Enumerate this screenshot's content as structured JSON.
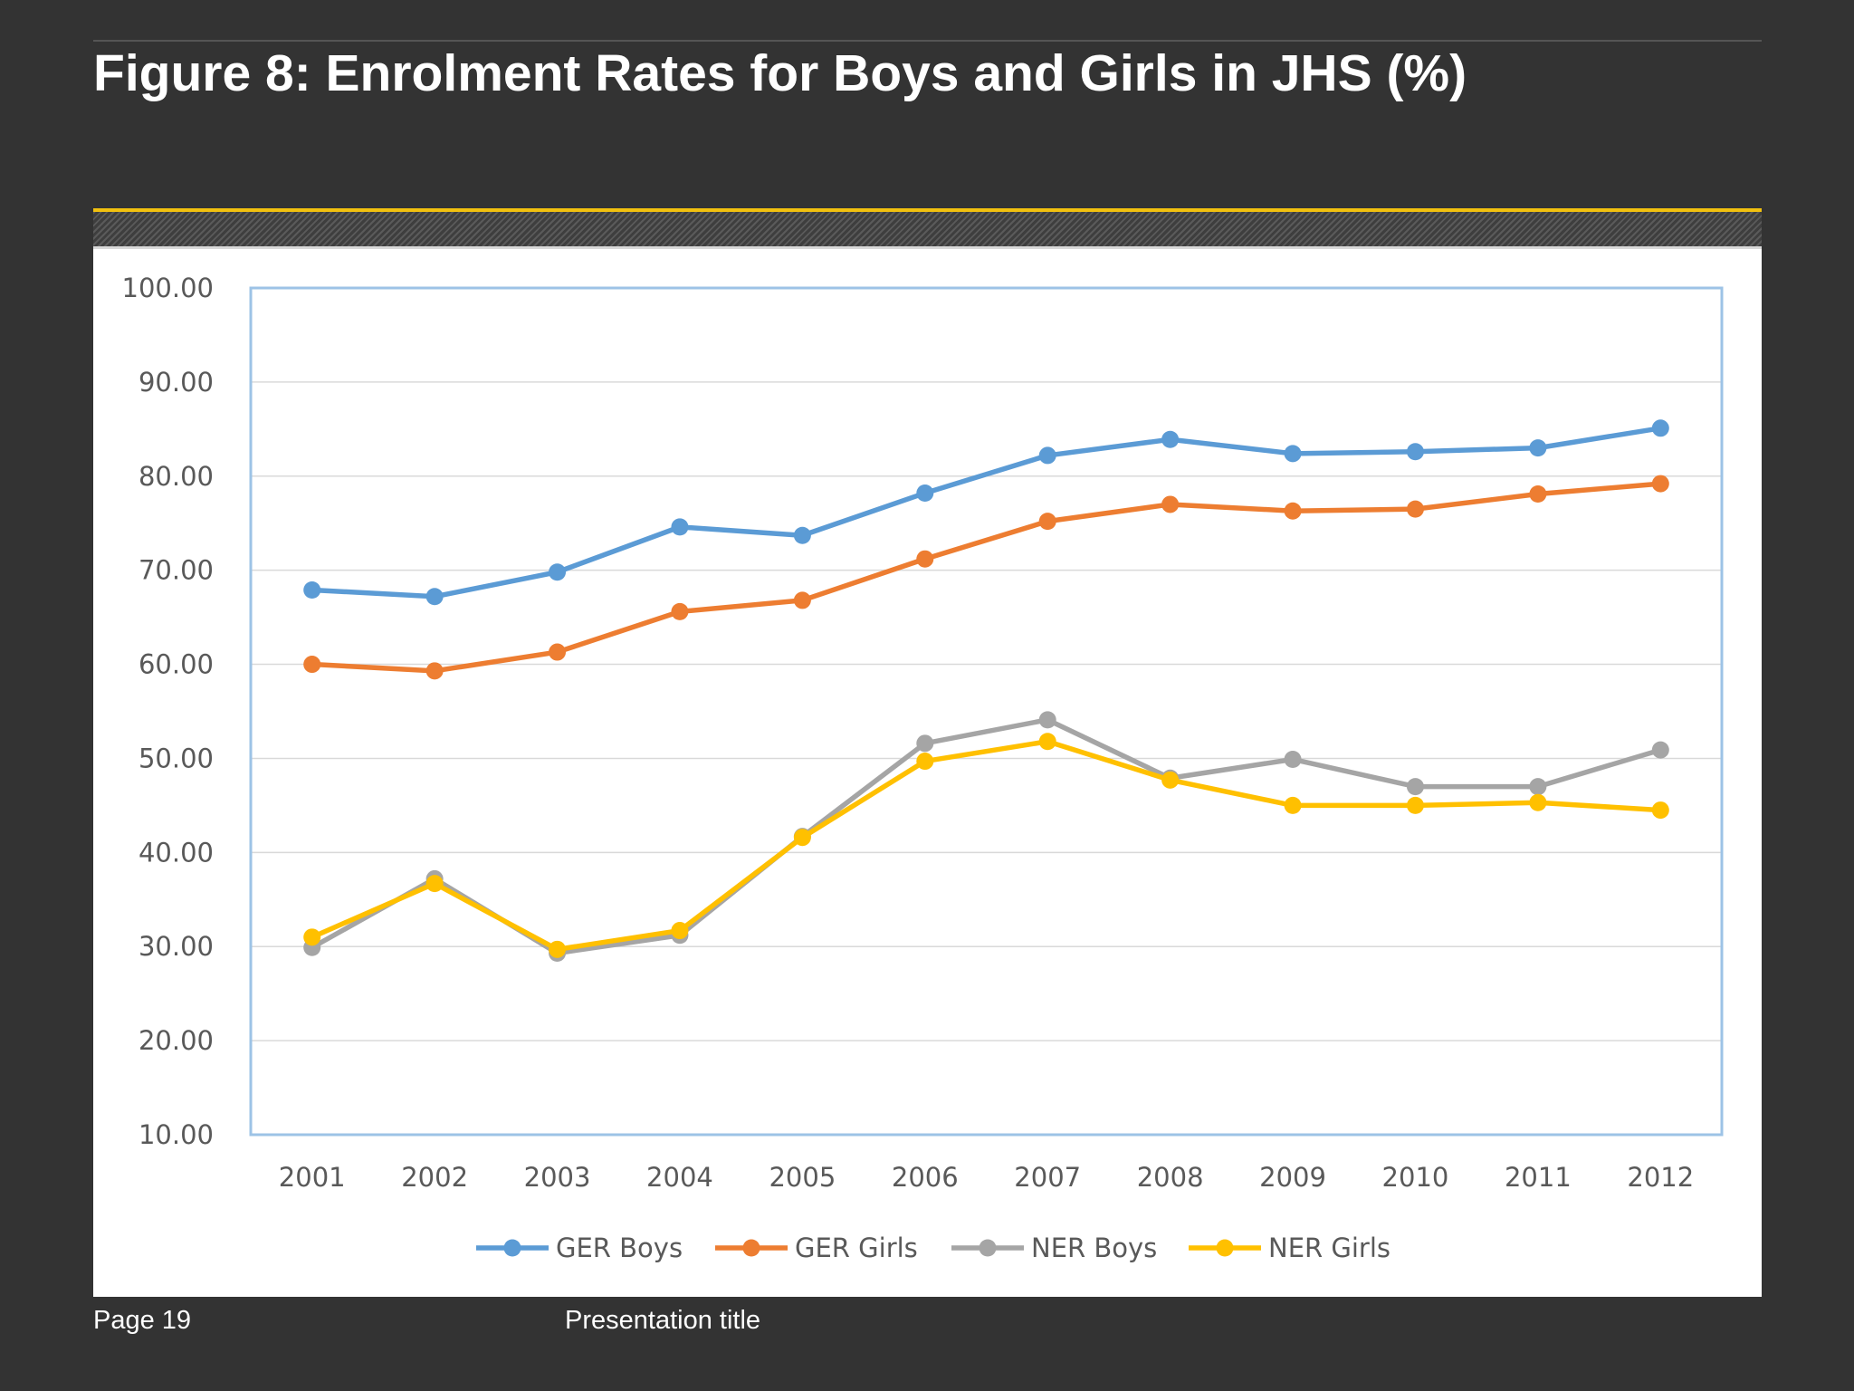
{
  "slide": {
    "title": "Figure 8: Enrolment Rates for Boys and Girls in JHS (%)",
    "page_label": "Page 19",
    "presentation_title": "Presentation title",
    "accent_color": "#f1c00f",
    "background_color": "#333333"
  },
  "chart_data": {
    "type": "line",
    "title": "",
    "xlabel": "",
    "ylabel": "",
    "categories": [
      "2001",
      "2002",
      "2003",
      "2004",
      "2005",
      "2006",
      "2007",
      "2008",
      "2009",
      "2010",
      "2011",
      "2012"
    ],
    "ylim": [
      10,
      100
    ],
    "yticks": [
      "10.00",
      "20.00",
      "30.00",
      "40.00",
      "50.00",
      "60.00",
      "70.00",
      "80.00",
      "90.00",
      "100.00"
    ],
    "grid": true,
    "legend_position": "bottom",
    "series": [
      {
        "name": "GER Boys",
        "color": "#5b9bd5",
        "values": [
          67.9,
          67.2,
          69.8,
          74.6,
          73.7,
          78.2,
          82.2,
          83.9,
          82.4,
          82.6,
          83.0,
          85.1
        ]
      },
      {
        "name": "GER Girls",
        "color": "#ed7d31",
        "values": [
          60.0,
          59.3,
          61.3,
          65.6,
          66.8,
          71.2,
          75.2,
          77.0,
          76.3,
          76.5,
          78.1,
          79.2
        ]
      },
      {
        "name": "NER Boys",
        "color": "#a5a5a5",
        "values": [
          29.9,
          37.2,
          29.3,
          31.2,
          41.7,
          51.6,
          54.1,
          47.9,
          49.9,
          47.0,
          47.0,
          50.9
        ]
      },
      {
        "name": "NER Girls",
        "color": "#ffc000",
        "values": [
          31.0,
          36.7,
          29.7,
          31.7,
          41.6,
          49.7,
          51.8,
          47.7,
          45.0,
          45.0,
          45.3,
          44.5
        ]
      }
    ]
  }
}
